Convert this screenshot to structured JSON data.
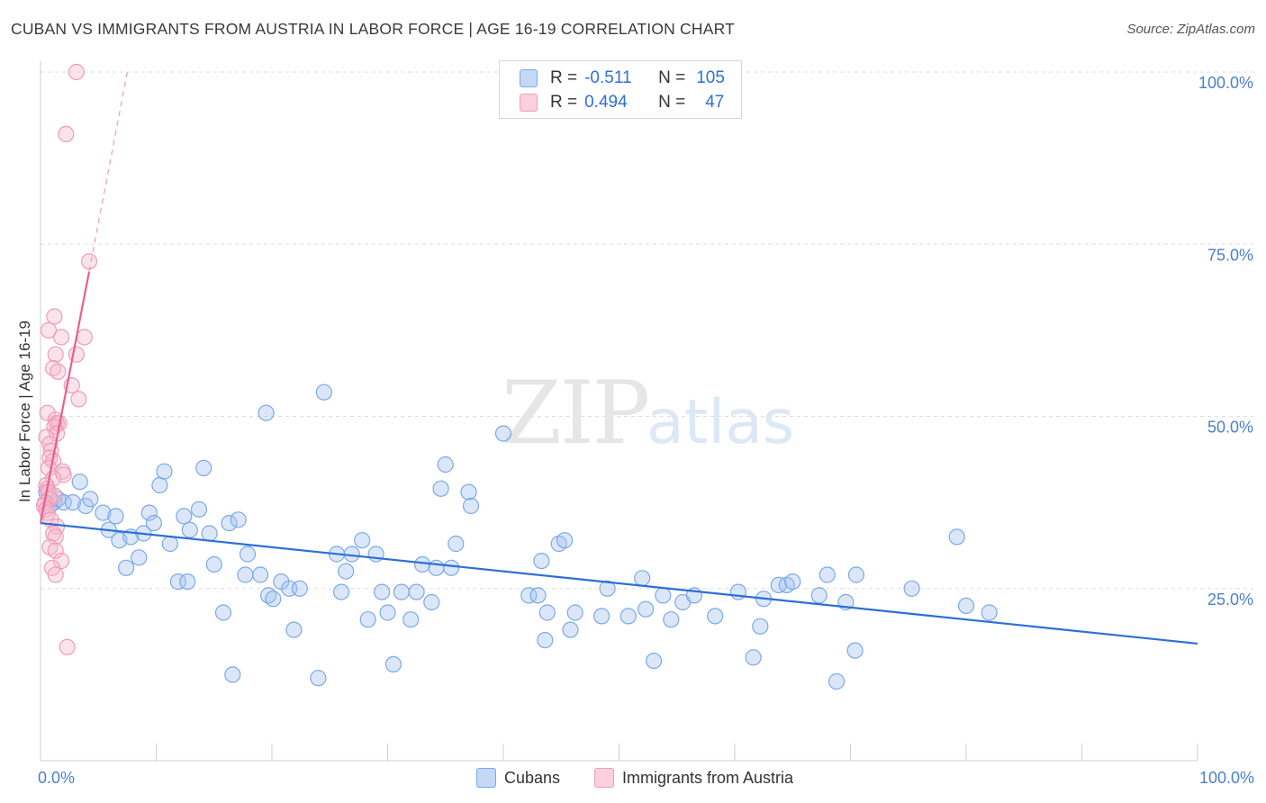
{
  "title": "CUBAN VS IMMIGRANTS FROM AUSTRIA IN LABOR FORCE | AGE 16-19 CORRELATION CHART",
  "source": "Source: ZipAtlas.com",
  "watermark": {
    "zip": "ZIP",
    "atlas": "atlas"
  },
  "colors": {
    "blue": "#7aa9e8",
    "blue_line": "#2c6fd6",
    "pink": "#f09bb8",
    "pink_line": "#e8608e",
    "tick": "#4a7fd0"
  },
  "legend": {
    "rows": [
      {
        "r_label": "R =",
        "r_value": "-0.511",
        "n_label": "N =",
        "n_value": "105"
      },
      {
        "r_label": "R =",
        "r_value": "0.494",
        "n_label": "N =",
        "n_value": "47"
      }
    ]
  },
  "bottom_legend": [
    "Cubans",
    "Immigrants from Austria"
  ],
  "chart_data": {
    "type": "scatter",
    "xlabel": "",
    "ylabel": "In Labor Force | Age 16-19",
    "xlim": [
      0,
      100
    ],
    "ylim": [
      0,
      100
    ],
    "x_tick_labels": [
      "0.0%",
      "100.0%"
    ],
    "y_ticks": [
      25,
      50,
      75,
      100
    ],
    "y_tick_labels": [
      "25.0%",
      "50.0%",
      "75.0%",
      "100.0%"
    ],
    "grid": true,
    "legend_position": "top-center",
    "series": [
      {
        "name": "Cubans",
        "r": -0.511,
        "n": 105,
        "trend": {
          "x": [
            0,
            100
          ],
          "y": [
            34.5,
            17
          ]
        },
        "points": [
          [
            0.5,
            39
          ],
          [
            0.8,
            37
          ],
          [
            1.2,
            37.5
          ],
          [
            1.5,
            38
          ],
          [
            2,
            37.5
          ],
          [
            2.8,
            37.5
          ],
          [
            3.4,
            40.5
          ],
          [
            3.9,
            37
          ],
          [
            4.3,
            38
          ],
          [
            5.4,
            36
          ],
          [
            5.9,
            33.5
          ],
          [
            6.5,
            35.5
          ],
          [
            6.8,
            32
          ],
          [
            7.4,
            28
          ],
          [
            7.8,
            32.5
          ],
          [
            8.5,
            29.5
          ],
          [
            8.9,
            33
          ],
          [
            9.4,
            36
          ],
          [
            9.8,
            34.5
          ],
          [
            10.3,
            40
          ],
          [
            10.7,
            42
          ],
          [
            11.2,
            31.5
          ],
          [
            11.9,
            26
          ],
          [
            12.4,
            35.5
          ],
          [
            12.9,
            33.5
          ],
          [
            12.7,
            26
          ],
          [
            13.7,
            36.5
          ],
          [
            14.1,
            42.5
          ],
          [
            14.6,
            33
          ],
          [
            15,
            28.5
          ],
          [
            15.8,
            21.5
          ],
          [
            16.3,
            34.5
          ],
          [
            16.6,
            12.5
          ],
          [
            17.1,
            35
          ],
          [
            17.9,
            30
          ],
          [
            17.7,
            27
          ],
          [
            19,
            27
          ],
          [
            19.5,
            50.5
          ],
          [
            19.7,
            24
          ],
          [
            20.1,
            23.5
          ],
          [
            20.8,
            26
          ],
          [
            21.5,
            25
          ],
          [
            21.9,
            19
          ],
          [
            22.4,
            25
          ],
          [
            24,
            12
          ],
          [
            24.5,
            53.5
          ],
          [
            25.6,
            30
          ],
          [
            26,
            24.5
          ],
          [
            26.4,
            27.5
          ],
          [
            26.9,
            30
          ],
          [
            27.8,
            32
          ],
          [
            28.3,
            20.5
          ],
          [
            29,
            30
          ],
          [
            29.5,
            24.5
          ],
          [
            30,
            21.5
          ],
          [
            30.5,
            14
          ],
          [
            31.2,
            24.5
          ],
          [
            32,
            20.5
          ],
          [
            32.5,
            24.5
          ],
          [
            33,
            28.5
          ],
          [
            33.8,
            23
          ],
          [
            34.2,
            28
          ],
          [
            34.6,
            39.5
          ],
          [
            35.5,
            28
          ],
          [
            35,
            43
          ],
          [
            35.9,
            31.5
          ],
          [
            37,
            39
          ],
          [
            37.2,
            37
          ],
          [
            40,
            47.5
          ],
          [
            42.2,
            24
          ],
          [
            43,
            24
          ],
          [
            43.6,
            17.5
          ],
          [
            43.8,
            21.5
          ],
          [
            43.3,
            29
          ],
          [
            44.8,
            31.5
          ],
          [
            45.3,
            32
          ],
          [
            45.8,
            19
          ],
          [
            46.2,
            21.5
          ],
          [
            48.5,
            21
          ],
          [
            49,
            25
          ],
          [
            50.8,
            21
          ],
          [
            52,
            26.5
          ],
          [
            53,
            14.5
          ],
          [
            52.3,
            22
          ],
          [
            53.8,
            24
          ],
          [
            54.5,
            20.5
          ],
          [
            55.5,
            23
          ],
          [
            56.5,
            24
          ],
          [
            58.3,
            21
          ],
          [
            60.3,
            24.5
          ],
          [
            61.6,
            15
          ],
          [
            62.2,
            19.5
          ],
          [
            62.5,
            23.5
          ],
          [
            63.8,
            25.5
          ],
          [
            64.5,
            25.5
          ],
          [
            65,
            26
          ],
          [
            67.3,
            24
          ],
          [
            68,
            27
          ],
          [
            68.8,
            11.5
          ],
          [
            69.6,
            23
          ],
          [
            70.4,
            16
          ],
          [
            70.5,
            27
          ],
          [
            75.3,
            25
          ],
          [
            79.2,
            32.5
          ],
          [
            80,
            22.5
          ],
          [
            82,
            21.5
          ]
        ]
      },
      {
        "name": "Immigrants from Austria",
        "r": 0.494,
        "n": 47,
        "trend": {
          "x": [
            0,
            4.2
          ],
          "y": [
            34.5,
            71
          ]
        },
        "trend_extension": {
          "x": [
            4.2,
            7.5
          ],
          "y": [
            71,
            100
          ]
        },
        "points": [
          [
            3.1,
            100
          ],
          [
            2.2,
            91
          ],
          [
            4.2,
            72.5
          ],
          [
            1.2,
            64.5
          ],
          [
            0.7,
            62.5
          ],
          [
            3.8,
            61.5
          ],
          [
            1.8,
            61.5
          ],
          [
            1.3,
            59
          ],
          [
            3.1,
            59
          ],
          [
            1.1,
            57
          ],
          [
            1.5,
            56.5
          ],
          [
            2.7,
            54.5
          ],
          [
            3.3,
            52.5
          ],
          [
            0.6,
            50.5
          ],
          [
            1.3,
            49.5
          ],
          [
            1.4,
            49
          ],
          [
            1.6,
            49
          ],
          [
            1.2,
            48.5
          ],
          [
            1.4,
            47.5
          ],
          [
            0.5,
            47
          ],
          [
            0.8,
            46
          ],
          [
            0.9,
            45
          ],
          [
            0.8,
            44
          ],
          [
            1.1,
            43.5
          ],
          [
            0.7,
            42.5
          ],
          [
            1.9,
            42
          ],
          [
            2,
            41.5
          ],
          [
            1.1,
            41
          ],
          [
            0.5,
            40
          ],
          [
            0.6,
            39.5
          ],
          [
            0.7,
            39
          ],
          [
            1.2,
            38.5
          ],
          [
            0.8,
            38
          ],
          [
            0.4,
            37.5
          ],
          [
            0.3,
            37
          ],
          [
            0.5,
            36.5
          ],
          [
            0.6,
            36
          ],
          [
            0.9,
            35
          ],
          [
            1.4,
            34
          ],
          [
            1.1,
            33
          ],
          [
            1.3,
            32.5
          ],
          [
            0.8,
            31
          ],
          [
            1.3,
            30.5
          ],
          [
            1.8,
            29
          ],
          [
            1,
            28
          ],
          [
            1.3,
            27
          ],
          [
            2.3,
            16.5
          ]
        ]
      }
    ]
  }
}
